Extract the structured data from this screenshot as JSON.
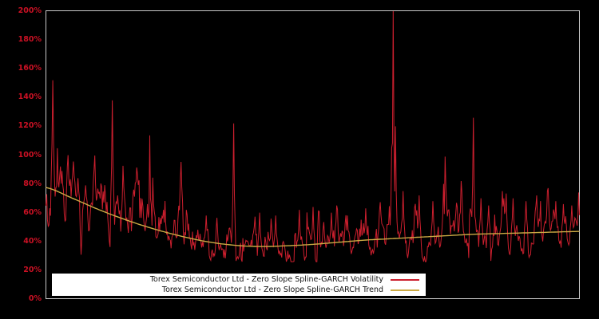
{
  "colors": {
    "background": "#000000",
    "plot_border": "#c9c9c9",
    "axis_label": "#cc1124",
    "volatility_line": "#cc1f2e",
    "trend_line": "#ccaa44",
    "legend_bg": "#ffffff",
    "legend_text": "#111111"
  },
  "y_axis": {
    "tick_labels": [
      "0%",
      "20%",
      "40%",
      "60%",
      "80%",
      "100%",
      "120%",
      "140%",
      "160%",
      "180%",
      "200%"
    ],
    "min_pct": 0,
    "max_pct": 200,
    "unit": "%"
  },
  "legend": {
    "position": "bottom-center",
    "entries": [
      {
        "label": "Torex Semiconductor Ltd - Zero Slope Spline-GARCH Volatility",
        "color": "#cc1f2e"
      },
      {
        "label": "Torex Semiconductor Ltd - Zero Slope Spline-GARCH Trend",
        "color": "#ccaa44"
      }
    ]
  },
  "chart_data": {
    "type": "line",
    "title": "",
    "xlabel": "",
    "ylabel": "",
    "ylim": [
      0,
      200
    ],
    "grid": false,
    "x_axis_labels_visible": false,
    "series": [
      {
        "name": "Torex Semiconductor Ltd - Zero Slope Spline-GARCH Volatility",
        "style": "noisy",
        "color": "#cc1f2e"
      },
      {
        "name": "Torex Semiconductor Ltd - Zero Slope Spline-GARCH Trend",
        "style": "smooth",
        "color": "#ccaa44"
      }
    ],
    "trend_knots": {
      "t": [
        0.0,
        0.05,
        0.1,
        0.15,
        0.2,
        0.25,
        0.3,
        0.35,
        0.4,
        0.45,
        0.5,
        0.55,
        0.6,
        0.65,
        0.7,
        0.75,
        0.8,
        0.85,
        0.9,
        0.95,
        1.0
      ],
      "pct": [
        77.5,
        70.0,
        62.0,
        55.0,
        49.0,
        44.0,
        40.0,
        37.5,
        36.5,
        37.0,
        38.0,
        39.5,
        41.0,
        42.0,
        43.0,
        44.0,
        45.0,
        45.5,
        46.0,
        46.5,
        47.0
      ]
    },
    "volatility_spikes": [
      {
        "t": 0.013,
        "pct": 152
      },
      {
        "t": 0.03,
        "pct": 89
      },
      {
        "t": 0.042,
        "pct": 100
      },
      {
        "t": 0.06,
        "pct": 84
      },
      {
        "t": 0.075,
        "pct": 79
      },
      {
        "t": 0.124,
        "pct": 138
      },
      {
        "t": 0.135,
        "pct": 72
      },
      {
        "t": 0.165,
        "pct": 76
      },
      {
        "t": 0.19,
        "pct": 66
      },
      {
        "t": 0.22,
        "pct": 62
      },
      {
        "t": 0.255,
        "pct": 60
      },
      {
        "t": 0.3,
        "pct": 58
      },
      {
        "t": 0.352,
        "pct": 122
      },
      {
        "t": 0.4,
        "pct": 60
      },
      {
        "t": 0.43,
        "pct": 58
      },
      {
        "t": 0.475,
        "pct": 62
      },
      {
        "t": 0.5,
        "pct": 64
      },
      {
        "t": 0.535,
        "pct": 60
      },
      {
        "t": 0.565,
        "pct": 58
      },
      {
        "t": 0.6,
        "pct": 63
      },
      {
        "t": 0.625,
        "pct": 60
      },
      {
        "t": 0.648,
        "pct": 105
      },
      {
        "t": 0.651,
        "pct": 200
      },
      {
        "t": 0.655,
        "pct": 120
      },
      {
        "t": 0.67,
        "pct": 75
      },
      {
        "t": 0.7,
        "pct": 72
      },
      {
        "t": 0.725,
        "pct": 68
      },
      {
        "t": 0.745,
        "pct": 80
      },
      {
        "t": 0.778,
        "pct": 82
      },
      {
        "t": 0.801,
        "pct": 126
      },
      {
        "t": 0.815,
        "pct": 70
      },
      {
        "t": 0.83,
        "pct": 65
      },
      {
        "t": 0.855,
        "pct": 75
      },
      {
        "t": 0.875,
        "pct": 70
      },
      {
        "t": 0.9,
        "pct": 68
      },
      {
        "t": 0.92,
        "pct": 72
      },
      {
        "t": 0.94,
        "pct": 75
      },
      {
        "t": 0.955,
        "pct": 68
      },
      {
        "t": 0.97,
        "pct": 66
      },
      {
        "t": 0.985,
        "pct": 65
      },
      {
        "t": 0.998,
        "pct": 74
      }
    ],
    "volatility_band": {
      "min_pct": 26,
      "max_pct": 200
    },
    "n_points": 700,
    "noise": {
      "seed": 11,
      "ar": 0.74,
      "sigma": 0.13,
      "burst_prob": 0.03
    }
  }
}
